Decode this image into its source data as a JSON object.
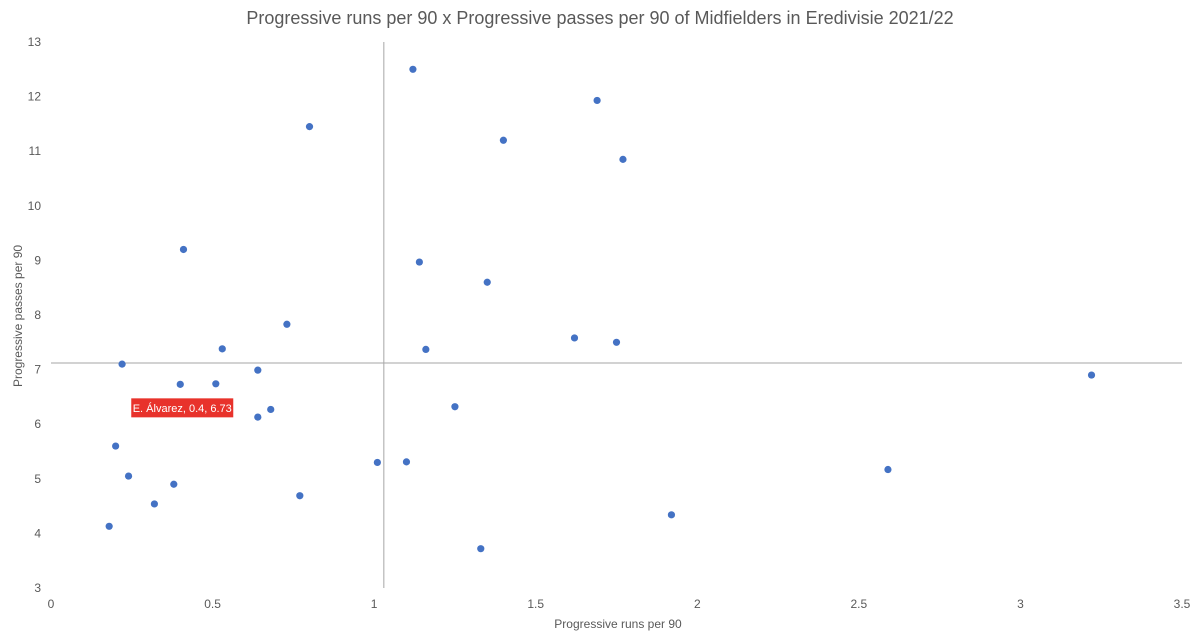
{
  "chart_data": {
    "type": "scatter",
    "title": "Progressive runs per 90 x Progressive passes per 90 of Midfielders in Eredivisie 2021/22",
    "xlabel": "Progressive runs per 90",
    "ylabel": "Progressive passes per 90",
    "xlim": [
      0,
      3.5
    ],
    "ylim": [
      3,
      13
    ],
    "xticks": [
      "0",
      "0.5",
      "1",
      "1.5",
      "2",
      "2.5",
      "3",
      "3.5"
    ],
    "yticks": [
      "3",
      "4",
      "5",
      "6",
      "7",
      "8",
      "9",
      "10",
      "11",
      "12",
      "13"
    ],
    "grid": false,
    "point_color": "#4472C4",
    "reference_lines": {
      "x": 1.03,
      "y": 7.12
    },
    "points": [
      {
        "x": 1.12,
        "y": 12.5
      },
      {
        "x": 1.69,
        "y": 11.93
      },
      {
        "x": 0.8,
        "y": 11.45
      },
      {
        "x": 1.4,
        "y": 11.2
      },
      {
        "x": 1.77,
        "y": 10.85
      },
      {
        "x": 0.41,
        "y": 9.2
      },
      {
        "x": 1.14,
        "y": 8.97
      },
      {
        "x": 1.35,
        "y": 8.6
      },
      {
        "x": 0.73,
        "y": 7.83
      },
      {
        "x": 1.62,
        "y": 7.58
      },
      {
        "x": 1.75,
        "y": 7.5
      },
      {
        "x": 0.53,
        "y": 7.38
      },
      {
        "x": 1.16,
        "y": 7.37
      },
      {
        "x": 0.22,
        "y": 7.1
      },
      {
        "x": 0.64,
        "y": 6.99
      },
      {
        "x": 3.22,
        "y": 6.9
      },
      {
        "x": 0.51,
        "y": 6.74
      },
      {
        "x": 0.4,
        "y": 6.73
      },
      {
        "x": 1.25,
        "y": 6.32
      },
      {
        "x": 0.68,
        "y": 6.27
      },
      {
        "x": 0.64,
        "y": 6.13
      },
      {
        "x": 0.2,
        "y": 5.6
      },
      {
        "x": 1.01,
        "y": 5.3
      },
      {
        "x": 1.1,
        "y": 5.31
      },
      {
        "x": 2.59,
        "y": 5.17
      },
      {
        "x": 0.24,
        "y": 5.05
      },
      {
        "x": 0.38,
        "y": 4.9
      },
      {
        "x": 0.77,
        "y": 4.69
      },
      {
        "x": 0.32,
        "y": 4.54
      },
      {
        "x": 1.92,
        "y": 4.34
      },
      {
        "x": 0.18,
        "y": 4.13
      },
      {
        "x": 1.33,
        "y": 3.72
      }
    ],
    "annotation": {
      "text": "E. Álvarez, 0.4, 6.73",
      "x": 0.4,
      "y": 6.73,
      "color": "#E8322B"
    }
  }
}
